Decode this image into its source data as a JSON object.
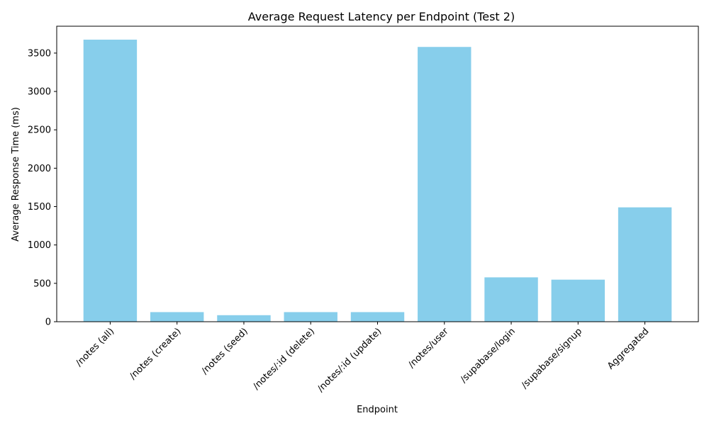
{
  "chart_data": {
    "type": "bar",
    "title": "Average Request Latency per Endpoint (Test 2)",
    "xlabel": "Endpoint",
    "ylabel": "Average Response Time (ms)",
    "categories": [
      "/notes (all)",
      "/notes (create)",
      "/notes (seed)",
      "/notes/:id (delete)",
      "/notes/:id (update)",
      "/notes/user",
      "/supabase/login",
      "/supabase/signup",
      "Aggregated"
    ],
    "values": [
      3675,
      125,
      85,
      125,
      125,
      3580,
      578,
      548,
      1490
    ],
    "ylim": [
      0,
      3850
    ],
    "yticks": [
      0,
      500,
      1000,
      1500,
      2000,
      2500,
      3000,
      3500
    ],
    "bar_color": "#87ceeb",
    "grid": false,
    "x_tick_rotation_deg": 45
  }
}
